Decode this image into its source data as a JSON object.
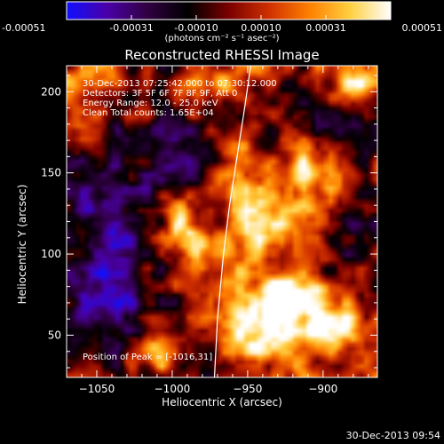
{
  "colorbar": {
    "tick_labels": [
      "-0.00051",
      "-0.00031",
      "-0.00010",
      "0.00010",
      "0.00031",
      "0.00051"
    ],
    "unit_label": "(photons cm⁻² s⁻¹ asec⁻²)",
    "colors": [
      "#1010ff",
      "#4a00a8",
      "#300040",
      "#000000",
      "#7a0000",
      "#d03000",
      "#ff8000",
      "#ffd040",
      "#ffffff"
    ]
  },
  "chart_data": {
    "type": "heatmap",
    "title": "Reconstructed RHESSI Image",
    "xlabel": "Heliocentric X (arcsec)",
    "ylabel": "Heliocentric Y (arcsec)",
    "xlim": [
      -1070,
      -864
    ],
    "ylim": [
      24,
      216
    ],
    "x_ticks": [
      -1050,
      -1000,
      -950,
      -900
    ],
    "y_ticks": [
      50,
      100,
      150,
      200
    ],
    "x_tick_labels": [
      "−1050",
      "−1000",
      "−950",
      "−900"
    ],
    "y_tick_labels": [
      "50",
      "100",
      "150",
      "200"
    ],
    "limb_curve": [
      [
        -972,
        24
      ],
      [
        -970,
        60
      ],
      [
        -966,
        100
      ],
      [
        -962,
        130
      ],
      [
        -957,
        160
      ],
      [
        -952,
        190
      ],
      [
        -948,
        216
      ]
    ],
    "bright_sources": [
      {
        "x": -1013,
        "y": 42,
        "sx": 12,
        "sy": 9,
        "a": 1.0
      },
      {
        "x": -945,
        "y": 60,
        "sx": 18,
        "sy": 16,
        "a": 0.95
      },
      {
        "x": -918,
        "y": 75,
        "sx": 10,
        "sy": 10,
        "a": 0.85
      },
      {
        "x": -895,
        "y": 58,
        "sx": 14,
        "sy": 12,
        "a": 0.75
      },
      {
        "x": -995,
        "y": 118,
        "sx": 10,
        "sy": 12,
        "a": 0.8
      },
      {
        "x": -975,
        "y": 100,
        "sx": 10,
        "sy": 10,
        "a": 0.75
      },
      {
        "x": -910,
        "y": 150,
        "sx": 10,
        "sy": 16,
        "a": 0.8
      },
      {
        "x": -940,
        "y": 120,
        "sx": 12,
        "sy": 14,
        "a": 0.7
      },
      {
        "x": -975,
        "y": 205,
        "sx": 16,
        "sy": 9,
        "a": 0.65
      },
      {
        "x": -880,
        "y": 205,
        "sx": 12,
        "sy": 9,
        "a": 0.8
      },
      {
        "x": -1060,
        "y": 200,
        "sx": 14,
        "sy": 18,
        "a": 0.55
      },
      {
        "x": -960,
        "y": 160,
        "sx": 8,
        "sy": 18,
        "a": 0.55
      }
    ],
    "dark_regions": [
      {
        "x": -1045,
        "y": 110,
        "sx": 22,
        "sy": 45,
        "a": 0.65
      },
      {
        "x": -1040,
        "y": 60,
        "sx": 18,
        "sy": 18,
        "a": 0.45
      },
      {
        "x": -900,
        "y": 185,
        "sx": 28,
        "sy": 18,
        "a": 0.6
      },
      {
        "x": -875,
        "y": 110,
        "sx": 12,
        "sy": 30,
        "a": 0.5
      },
      {
        "x": -1000,
        "y": 160,
        "sx": 18,
        "sy": 18,
        "a": 0.4
      }
    ]
  },
  "overlay": {
    "time_range": "30-Dec-2013 07:25:42.000 to 07:30:12.000",
    "detectors": "Detectors: 3F 5F 6F 7F 8F 9F, Att 0",
    "energy_range": "Energy Range: 12.0 - 25.0 keV",
    "clean_counts": "Clean    Total counts: 1.65E+04",
    "position_label": "Position of Peak = [-1016,31]"
  },
  "footer": {
    "date": "30-Dec-2013 09:54"
  }
}
